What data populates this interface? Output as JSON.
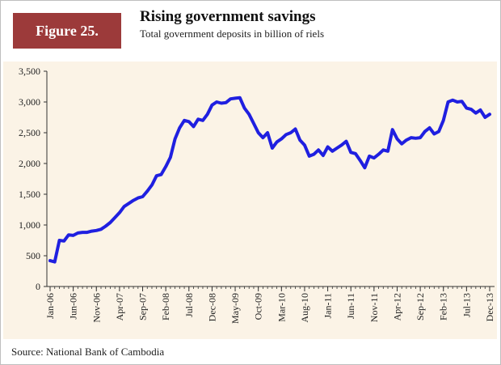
{
  "header": {
    "figure_label": "Figure 25.",
    "title": "Rising government savings",
    "subtitle": "Total government deposits in billion of riels"
  },
  "footer": {
    "source": "Source: National Bank of Cambodia"
  },
  "colors": {
    "badge": "#9c3a3a",
    "line": "#1f1fe0",
    "background": "#fbf3e6"
  },
  "chart_data": {
    "type": "line",
    "title": "Rising government savings",
    "subtitle": "Total government deposits in billion of riels",
    "xlabel": "",
    "ylabel": "",
    "ylim": [
      0,
      3500
    ],
    "yticks": [
      0,
      500,
      1000,
      1500,
      2000,
      2500,
      3000,
      3500
    ],
    "ytick_labels": [
      "0",
      "500",
      "1,000",
      "1,500",
      "2,000",
      "2,500",
      "3,000",
      "3,500"
    ],
    "xtick_labels": [
      "Jan-06",
      "Jun-06",
      "Nov-06",
      "Apr-07",
      "Sep-07",
      "Feb-08",
      "Jul-08",
      "Dec-08",
      "May-09",
      "Oct-09",
      "Mar-10",
      "Aug-10",
      "Jan-11",
      "Jun-11",
      "Nov-11",
      "Apr-12",
      "Sep-12",
      "Feb-13",
      "Jul-13",
      "Dec-13"
    ],
    "grid": false,
    "legend": "none",
    "series": [
      {
        "points": [
          [
            "Jan-06",
            420
          ],
          [
            "Feb-06",
            400
          ],
          [
            "Mar-06",
            750
          ],
          [
            "Apr-06",
            740
          ],
          [
            "May-06",
            840
          ],
          [
            "Jun-06",
            830
          ],
          [
            "Jul-06",
            870
          ],
          [
            "Aug-06",
            880
          ],
          [
            "Sep-06",
            880
          ],
          [
            "Oct-06",
            900
          ],
          [
            "Nov-06",
            910
          ],
          [
            "Dec-06",
            930
          ],
          [
            "Jan-07",
            980
          ],
          [
            "Feb-07",
            1040
          ],
          [
            "Mar-07",
            1120
          ],
          [
            "Apr-07",
            1200
          ],
          [
            "May-07",
            1300
          ],
          [
            "Jun-07",
            1350
          ],
          [
            "Jul-07",
            1400
          ],
          [
            "Aug-07",
            1440
          ],
          [
            "Sep-07",
            1460
          ],
          [
            "Oct-07",
            1550
          ],
          [
            "Nov-07",
            1650
          ],
          [
            "Dec-07",
            1800
          ],
          [
            "Jan-08",
            1820
          ],
          [
            "Feb-08",
            1950
          ],
          [
            "Mar-08",
            2100
          ],
          [
            "Apr-08",
            2400
          ],
          [
            "May-08",
            2580
          ],
          [
            "Jun-08",
            2700
          ],
          [
            "Jul-08",
            2680
          ],
          [
            "Aug-08",
            2600
          ],
          [
            "Sep-08",
            2720
          ],
          [
            "Oct-08",
            2700
          ],
          [
            "Nov-08",
            2800
          ],
          [
            "Dec-08",
            2950
          ],
          [
            "Jan-09",
            3000
          ],
          [
            "Feb-09",
            2980
          ],
          [
            "Mar-09",
            2990
          ],
          [
            "Apr-09",
            3050
          ],
          [
            "May-09",
            3060
          ],
          [
            "Jun-09",
            3070
          ],
          [
            "Jul-09",
            2900
          ],
          [
            "Aug-09",
            2800
          ],
          [
            "Sep-09",
            2650
          ],
          [
            "Oct-09",
            2500
          ],
          [
            "Nov-09",
            2420
          ],
          [
            "Dec-09",
            2500
          ],
          [
            "Jan-10",
            2250
          ],
          [
            "Feb-10",
            2350
          ],
          [
            "Mar-10",
            2400
          ],
          [
            "Apr-10",
            2470
          ],
          [
            "May-10",
            2500
          ],
          [
            "Jun-10",
            2560
          ],
          [
            "Jul-10",
            2380
          ],
          [
            "Aug-10",
            2300
          ],
          [
            "Sep-10",
            2120
          ],
          [
            "Oct-10",
            2150
          ],
          [
            "Nov-10",
            2220
          ],
          [
            "Dec-10",
            2130
          ],
          [
            "Jan-11",
            2270
          ],
          [
            "Feb-11",
            2200
          ],
          [
            "Mar-11",
            2250
          ],
          [
            "Apr-11",
            2300
          ],
          [
            "May-11",
            2360
          ],
          [
            "Jun-11",
            2180
          ],
          [
            "Jul-11",
            2160
          ],
          [
            "Aug-11",
            2050
          ],
          [
            "Sep-11",
            1930
          ],
          [
            "Oct-11",
            2120
          ],
          [
            "Nov-11",
            2090
          ],
          [
            "Dec-11",
            2150
          ],
          [
            "Jan-12",
            2220
          ],
          [
            "Feb-12",
            2200
          ],
          [
            "Mar-12",
            2550
          ],
          [
            "Apr-12",
            2400
          ],
          [
            "May-12",
            2320
          ],
          [
            "Jun-12",
            2380
          ],
          [
            "Jul-12",
            2420
          ],
          [
            "Aug-12",
            2410
          ],
          [
            "Sep-12",
            2420
          ],
          [
            "Oct-12",
            2520
          ],
          [
            "Nov-12",
            2580
          ],
          [
            "Dec-12",
            2480
          ],
          [
            "Jan-13",
            2520
          ],
          [
            "Feb-13",
            2700
          ],
          [
            "Mar-13",
            3000
          ],
          [
            "Apr-13",
            3030
          ],
          [
            "May-13",
            3000
          ],
          [
            "Jun-13",
            3010
          ],
          [
            "Jul-13",
            2900
          ],
          [
            "Aug-13",
            2880
          ],
          [
            "Sep-13",
            2820
          ],
          [
            "Oct-13",
            2870
          ],
          [
            "Nov-13",
            2750
          ],
          [
            "Dec-13",
            2800
          ]
        ]
      }
    ]
  }
}
